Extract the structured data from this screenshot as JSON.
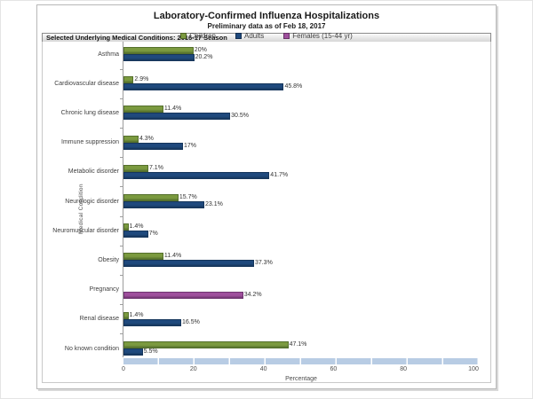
{
  "page": {
    "title": "Laboratory-Confirmed Influenza Hospitalizations",
    "subtitle": "Preliminary data as of Feb 18, 2017",
    "section_header": "Selected Underlying Medical Conditions: 2016-17 Season"
  },
  "legend": [
    {
      "label": "Children",
      "color": "#7b9a3f"
    },
    {
      "label": "Adults",
      "color": "#1f497d"
    },
    {
      "label": "Females (15-44 yr)",
      "color": "#9f4f9d"
    }
  ],
  "chart_data": {
    "type": "bar",
    "orientation": "horizontal",
    "title": "Laboratory-Confirmed Influenza Hospitalizations",
    "subtitle": "Preliminary data as of Feb 18, 2017",
    "xlabel": "Percentage",
    "ylabel": "Medical Condition",
    "xlim": [
      0,
      100
    ],
    "xticks": [
      0,
      20,
      40,
      60,
      80,
      100
    ],
    "grid": false,
    "legend_position": "top-center",
    "categories": [
      "Asthma",
      "Cardiovascular disease",
      "Chronic lung disease",
      "Immune suppression",
      "Metabolic disorder",
      "Neurologic disorder",
      "Neuromuscular disorder",
      "Obesity",
      "Pregnancy",
      "Renal disease",
      "No known condition"
    ],
    "series": [
      {
        "name": "Children",
        "color": "#7b9a3f",
        "border_color": "#55702c",
        "values": [
          20,
          2.9,
          11.4,
          4.3,
          7.1,
          15.7,
          1.4,
          11.4,
          null,
          1.4,
          47.1
        ]
      },
      {
        "name": "Adults",
        "color": "#1f497d",
        "border_color": "#16365c",
        "values": [
          20.2,
          45.8,
          30.5,
          17,
          41.7,
          23.1,
          7,
          37.3,
          null,
          16.5,
          5.5
        ]
      },
      {
        "name": "Females (15-44 yr)",
        "color": "#9f4f9d",
        "border_color": "#6f3570",
        "values": [
          null,
          null,
          null,
          null,
          null,
          null,
          null,
          null,
          34.2,
          null,
          null
        ]
      }
    ],
    "value_label_suffix": "%"
  }
}
